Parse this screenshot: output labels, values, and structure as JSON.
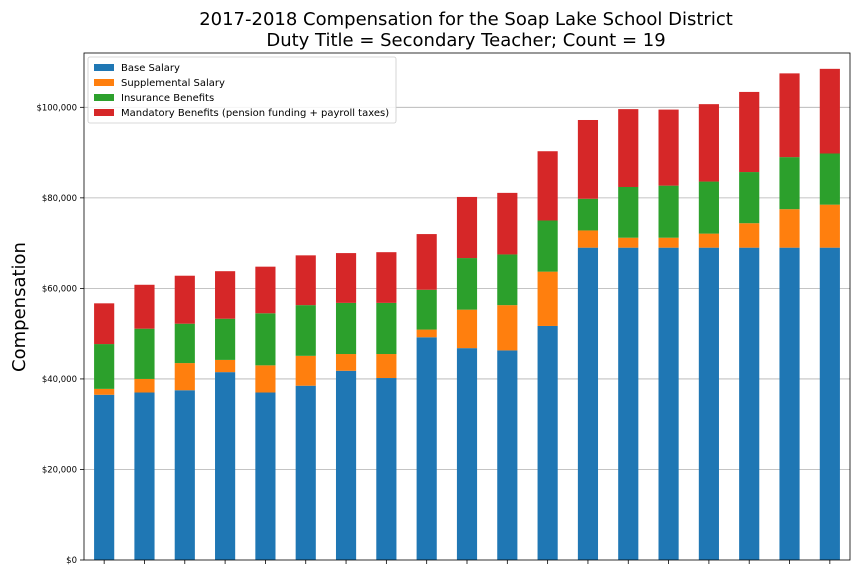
{
  "chart_data": {
    "type": "bar",
    "stacked": true,
    "title": [
      "2017-2018 Compensation for the Soap Lake School District",
      "Duty Title = Secondary Teacher; Count = 19"
    ],
    "xlabel": "",
    "ylabel": "Compensation",
    "ylim": [
      0,
      112000
    ],
    "yticks": [
      0,
      20000,
      40000,
      60000,
      80000,
      100000
    ],
    "ytick_labels": [
      "$0",
      "$20,000",
      "$40,000",
      "$60,000",
      "$80,000",
      "$100,000"
    ],
    "grid": "horizontal",
    "legend_position": "top-left",
    "categories": [
      "",
      "",
      "",
      "",
      "",
      "",
      "",
      "",
      "",
      "",
      "",
      "",
      "",
      "",
      "",
      "",
      "",
      "",
      ""
    ],
    "series": [
      {
        "name": "Base Salary",
        "color": "#1f77b4",
        "values": [
          36500,
          37000,
          37500,
          41500,
          37000,
          38500,
          41800,
          40200,
          49200,
          46800,
          46300,
          51700,
          69000,
          69000,
          69000,
          69000,
          69000,
          69000,
          69000
        ]
      },
      {
        "name": "Supplemental Salary",
        "color": "#ff7f0e",
        "values": [
          1300,
          3000,
          6000,
          2700,
          6000,
          6600,
          3700,
          5300,
          1700,
          8500,
          10000,
          12000,
          3800,
          2200,
          2200,
          3100,
          5400,
          8500,
          9500
        ]
      },
      {
        "name": "Insurance Benefits",
        "color": "#2ca02c",
        "values": [
          9900,
          11100,
          8700,
          9100,
          11500,
          11200,
          11300,
          11300,
          8800,
          11400,
          11200,
          11300,
          7000,
          11200,
          11500,
          11500,
          11300,
          11500,
          11300
        ]
      },
      {
        "name": "Mandatory Benefits (pension funding + payroll taxes)",
        "color": "#d62728",
        "values": [
          9000,
          9700,
          10600,
          10500,
          10300,
          11000,
          11000,
          11200,
          12300,
          13500,
          13600,
          15300,
          17400,
          17200,
          16800,
          17100,
          17700,
          18500,
          18700
        ]
      }
    ]
  }
}
